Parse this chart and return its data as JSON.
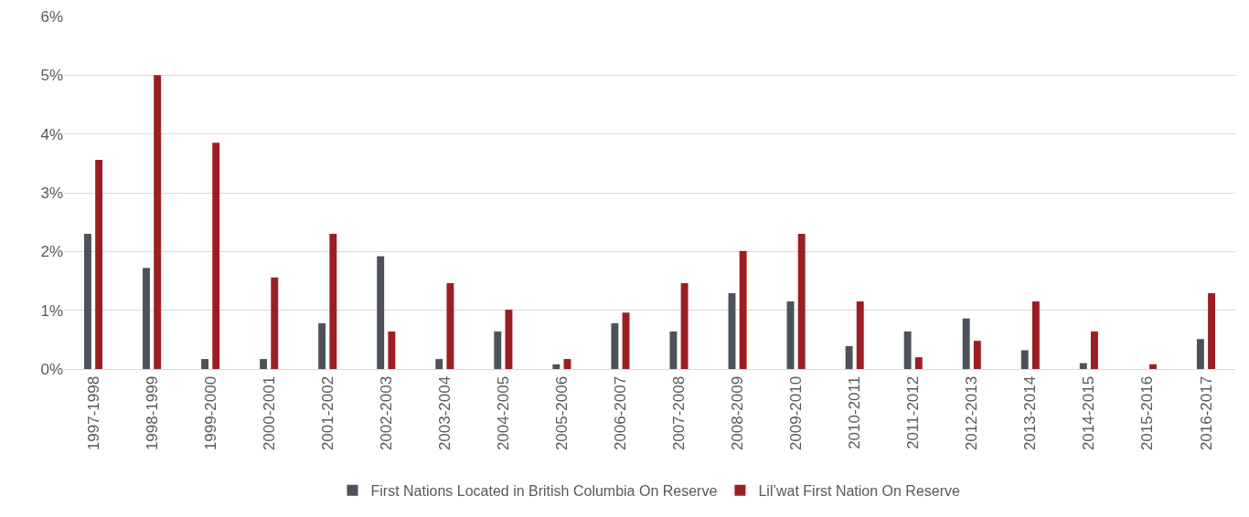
{
  "chart_data": {
    "type": "bar",
    "categories": [
      "1997-1998",
      "1998-1999",
      "1999-2000",
      "2000-2001",
      "2001-2002",
      "2002-2003",
      "2003-2004",
      "2004-2005",
      "2005-2006",
      "2006-2007",
      "2007-2008",
      "2008-2009",
      "2009-2010",
      "2010-2011",
      "2011-2012",
      "2012-2013",
      "2013-2014",
      "2014-2015",
      "2015-2016",
      "2016-2017"
    ],
    "series": [
      {
        "name": "First Nations Located in British Columbia On Reserve",
        "color": "#4d5159",
        "values": [
          2.3,
          1.72,
          0.17,
          0.17,
          0.78,
          1.92,
          0.17,
          0.64,
          0.08,
          0.78,
          0.64,
          1.29,
          1.15,
          0.39,
          0.64,
          0.86,
          0.32,
          0.1,
          0,
          0.51
        ]
      },
      {
        "name": "Lil’wat First Nation On Reserve",
        "color": "#9b1f22",
        "values": [
          3.56,
          5.0,
          3.85,
          1.56,
          2.3,
          0.64,
          1.46,
          1.01,
          0.17,
          0.96,
          1.46,
          2.01,
          2.3,
          1.15,
          0.2,
          0.48,
          1.15,
          0.64,
          0.08,
          1.29
        ]
      }
    ],
    "ylim": [
      0,
      6
    ],
    "yticks": [
      {
        "value": 0,
        "label": "0%"
      },
      {
        "value": 1,
        "label": "1%"
      },
      {
        "value": 2,
        "label": "2%"
      },
      {
        "value": 3,
        "label": "3%"
      },
      {
        "value": 4,
        "label": "4%"
      },
      {
        "value": 5,
        "label": "5%"
      },
      {
        "value": 6,
        "label": "6%"
      }
    ],
    "grid": "y",
    "legend": "bottom"
  }
}
